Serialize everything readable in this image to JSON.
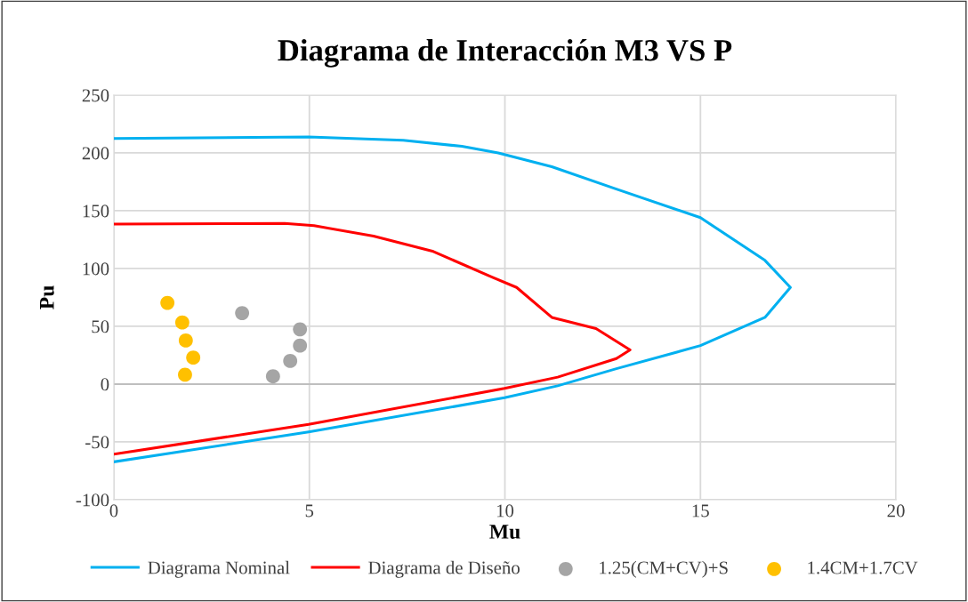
{
  "chart_data": {
    "type": "line",
    "title": "Diagrama de Interacción M3 VS P",
    "xlabel": "Mu",
    "ylabel": "Pu",
    "xlim": [
      0,
      20
    ],
    "xticks": [
      0,
      5,
      10,
      15,
      20
    ],
    "ylim": [
      -100,
      250
    ],
    "yticks": [
      -100,
      -50,
      0,
      50,
      100,
      150,
      200,
      250
    ],
    "grid": true,
    "legend": "bottom",
    "series": [
      {
        "name": "Diagrama Nominal",
        "color": "#00b0f0",
        "marker": "none",
        "line_style": "solid",
        "x": [
          0,
          4.98,
          7.4,
          8.9,
          9.83,
          11.2,
          12.85,
          15,
          16.65,
          17.3,
          16.65,
          15,
          12.85,
          11.35,
          9.99,
          4.98,
          0
        ],
        "values": [
          212.4,
          213.8,
          210.9,
          205.7,
          200,
          188,
          168.7,
          144,
          107,
          83.6,
          57.7,
          33.3,
          13.3,
          -1.5,
          -11.8,
          -41.4,
          -67.3
        ]
      },
      {
        "name": "Diagrama de Diseño",
        "color": "#ff0000",
        "marker": "none",
        "line_style": "solid",
        "x": [
          0,
          4.37,
          5.12,
          6.64,
          8.17,
          9.67,
          10.3,
          11.2,
          12.33,
          13.2,
          12.85,
          11.35,
          9.99,
          4.98,
          0
        ],
        "values": [
          138.4,
          139,
          137,
          128,
          114.7,
          92.5,
          83.6,
          57.7,
          48,
          29.6,
          22,
          6,
          -3.7,
          -34.8,
          -60.7
        ]
      },
      {
        "name": "1.25(CM+CV)+S",
        "type": "scatter",
        "color": "#a5a5a5",
        "marker": "circle",
        "x": [
          3.28,
          4.76,
          4.76,
          4.51,
          4.07
        ],
        "values": [
          61.4,
          47.4,
          33.3,
          20,
          6.7
        ]
      },
      {
        "name": "1.4CM+1.7CV",
        "type": "scatter",
        "color": "#ffc000",
        "marker": "circle",
        "x": [
          1.37,
          1.75,
          1.84,
          2.03,
          1.82
        ],
        "values": [
          70.3,
          53.3,
          37.7,
          22.9,
          8.1
        ]
      }
    ]
  }
}
